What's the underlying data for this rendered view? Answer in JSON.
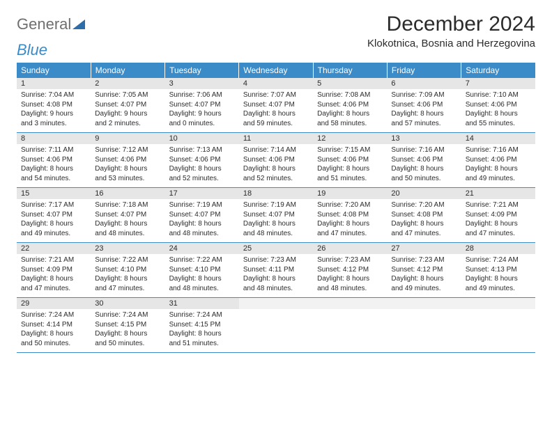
{
  "brand": {
    "word1": "General",
    "word2": "Blue",
    "grayColor": "#6f6f6f",
    "blueColor": "#3b8bc9"
  },
  "title": "December 2024",
  "location": "Klokotnica, Bosnia and Herzegovina",
  "columns": [
    "Sunday",
    "Monday",
    "Tuesday",
    "Wednesday",
    "Thursday",
    "Friday",
    "Saturday"
  ],
  "colors": {
    "headerBg": "#3b8bc9",
    "headerText": "#ffffff",
    "dayStripe": "#e6e6e6",
    "borderBlue": "#3b8bc9",
    "text": "#2b2b2b",
    "pageBg": "#ffffff"
  },
  "weeks": [
    [
      {
        "n": "1",
        "sunrise": "7:04 AM",
        "sunset": "4:08 PM",
        "dlh": "9",
        "dlm": "3"
      },
      {
        "n": "2",
        "sunrise": "7:05 AM",
        "sunset": "4:07 PM",
        "dlh": "9",
        "dlm": "2"
      },
      {
        "n": "3",
        "sunrise": "7:06 AM",
        "sunset": "4:07 PM",
        "dlh": "9",
        "dlm": "0"
      },
      {
        "n": "4",
        "sunrise": "7:07 AM",
        "sunset": "4:07 PM",
        "dlh": "8",
        "dlm": "59"
      },
      {
        "n": "5",
        "sunrise": "7:08 AM",
        "sunset": "4:06 PM",
        "dlh": "8",
        "dlm": "58"
      },
      {
        "n": "6",
        "sunrise": "7:09 AM",
        "sunset": "4:06 PM",
        "dlh": "8",
        "dlm": "57"
      },
      {
        "n": "7",
        "sunrise": "7:10 AM",
        "sunset": "4:06 PM",
        "dlh": "8",
        "dlm": "55"
      }
    ],
    [
      {
        "n": "8",
        "sunrise": "7:11 AM",
        "sunset": "4:06 PM",
        "dlh": "8",
        "dlm": "54"
      },
      {
        "n": "9",
        "sunrise": "7:12 AM",
        "sunset": "4:06 PM",
        "dlh": "8",
        "dlm": "53"
      },
      {
        "n": "10",
        "sunrise": "7:13 AM",
        "sunset": "4:06 PM",
        "dlh": "8",
        "dlm": "52"
      },
      {
        "n": "11",
        "sunrise": "7:14 AM",
        "sunset": "4:06 PM",
        "dlh": "8",
        "dlm": "52"
      },
      {
        "n": "12",
        "sunrise": "7:15 AM",
        "sunset": "4:06 PM",
        "dlh": "8",
        "dlm": "51"
      },
      {
        "n": "13",
        "sunrise": "7:16 AM",
        "sunset": "4:06 PM",
        "dlh": "8",
        "dlm": "50"
      },
      {
        "n": "14",
        "sunrise": "7:16 AM",
        "sunset": "4:06 PM",
        "dlh": "8",
        "dlm": "49"
      }
    ],
    [
      {
        "n": "15",
        "sunrise": "7:17 AM",
        "sunset": "4:07 PM",
        "dlh": "8",
        "dlm": "49"
      },
      {
        "n": "16",
        "sunrise": "7:18 AM",
        "sunset": "4:07 PM",
        "dlh": "8",
        "dlm": "48"
      },
      {
        "n": "17",
        "sunrise": "7:19 AM",
        "sunset": "4:07 PM",
        "dlh": "8",
        "dlm": "48"
      },
      {
        "n": "18",
        "sunrise": "7:19 AM",
        "sunset": "4:07 PM",
        "dlh": "8",
        "dlm": "48"
      },
      {
        "n": "19",
        "sunrise": "7:20 AM",
        "sunset": "4:08 PM",
        "dlh": "8",
        "dlm": "47"
      },
      {
        "n": "20",
        "sunrise": "7:20 AM",
        "sunset": "4:08 PM",
        "dlh": "8",
        "dlm": "47"
      },
      {
        "n": "21",
        "sunrise": "7:21 AM",
        "sunset": "4:09 PM",
        "dlh": "8",
        "dlm": "47"
      }
    ],
    [
      {
        "n": "22",
        "sunrise": "7:21 AM",
        "sunset": "4:09 PM",
        "dlh": "8",
        "dlm": "47"
      },
      {
        "n": "23",
        "sunrise": "7:22 AM",
        "sunset": "4:10 PM",
        "dlh": "8",
        "dlm": "47"
      },
      {
        "n": "24",
        "sunrise": "7:22 AM",
        "sunset": "4:10 PM",
        "dlh": "8",
        "dlm": "48"
      },
      {
        "n": "25",
        "sunrise": "7:23 AM",
        "sunset": "4:11 PM",
        "dlh": "8",
        "dlm": "48"
      },
      {
        "n": "26",
        "sunrise": "7:23 AM",
        "sunset": "4:12 PM",
        "dlh": "8",
        "dlm": "48"
      },
      {
        "n": "27",
        "sunrise": "7:23 AM",
        "sunset": "4:12 PM",
        "dlh": "8",
        "dlm": "49"
      },
      {
        "n": "28",
        "sunrise": "7:24 AM",
        "sunset": "4:13 PM",
        "dlh": "8",
        "dlm": "49"
      }
    ],
    [
      {
        "n": "29",
        "sunrise": "7:24 AM",
        "sunset": "4:14 PM",
        "dlh": "8",
        "dlm": "50"
      },
      {
        "n": "30",
        "sunrise": "7:24 AM",
        "sunset": "4:15 PM",
        "dlh": "8",
        "dlm": "50"
      },
      {
        "n": "31",
        "sunrise": "7:24 AM",
        "sunset": "4:15 PM",
        "dlh": "8",
        "dlm": "51"
      },
      null,
      null,
      null,
      null
    ]
  ],
  "labels": {
    "sunrise": "Sunrise: ",
    "sunset": "Sunset: ",
    "daylightA": "Daylight: ",
    "daylightB": " hours and ",
    "daylightC": " minutes."
  }
}
